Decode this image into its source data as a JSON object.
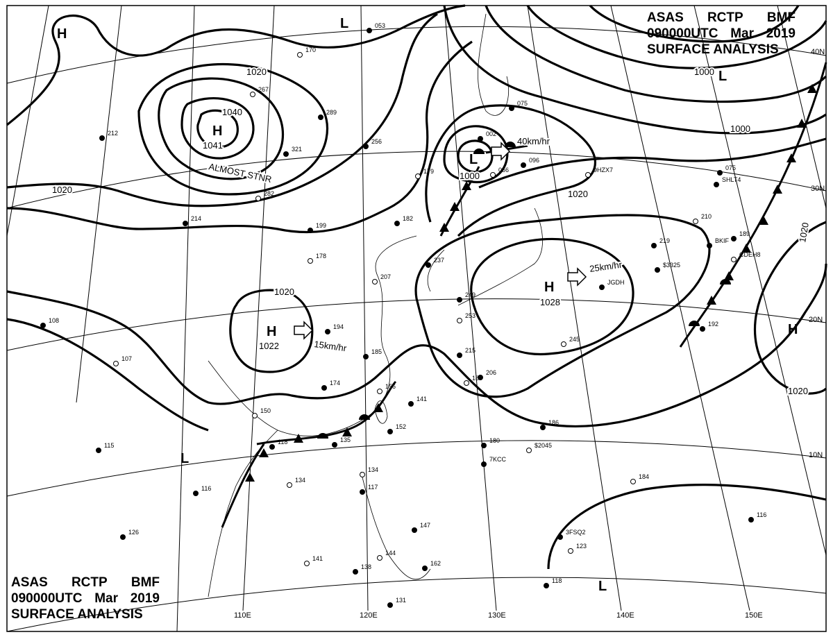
{
  "header": {
    "line1": [
      "ASAS",
      "RCTP",
      "BMF"
    ],
    "line2": [
      "090000UTC",
      "Mar",
      "2019"
    ],
    "line3": "SURFACE ANALYSIS"
  },
  "latitude_labels": [
    "40N",
    "30N",
    "20N",
    "10N"
  ],
  "longitude_labels": [
    "110E",
    "120E",
    "130E",
    "140E",
    "150E"
  ],
  "pressure_centers": [
    {
      "type": "H",
      "value": "1040",
      "note": "ALMOST STNR",
      "second_value": "1041"
    },
    {
      "type": "H",
      "value": "1022",
      "movement": "15km/hr"
    },
    {
      "type": "H",
      "value": "1028",
      "movement": "25km/hr"
    },
    {
      "type": "L",
      "value": "1000",
      "movement": "40km/hr"
    },
    {
      "type": "L"
    },
    {
      "type": "L"
    },
    {
      "type": "L"
    },
    {
      "type": "L"
    },
    {
      "type": "H"
    },
    {
      "type": "H"
    }
  ],
  "isobar_labels": [
    "1020",
    "1000",
    "1000",
    "1020",
    "1020",
    "1020",
    "1020",
    "1020"
  ],
  "stations": [
    "267",
    "289",
    "321",
    "282",
    "214",
    "199",
    "178",
    "194",
    "182",
    "207",
    "174",
    "185",
    "156",
    "141",
    "152",
    "150",
    "118",
    "135",
    "134",
    "116",
    "126",
    "141",
    "138",
    "131",
    "134",
    "117",
    "147",
    "144",
    "162",
    "206",
    "187",
    "215",
    "237",
    "253",
    "249",
    "219",
    "210",
    "189",
    "192",
    "245",
    "186",
    "180",
    "123",
    "118",
    "116",
    "184",
    "075",
    "096",
    "066",
    "002",
    "053",
    "170",
    "212",
    "256",
    "179",
    "075",
    "108",
    "107",
    "115",
    "SHLT4",
    "9HZX7",
    "JGDH",
    "7KCC",
    "$2045",
    "3FSQ2",
    "$3325",
    "CDEH8",
    "BKIF"
  ]
}
